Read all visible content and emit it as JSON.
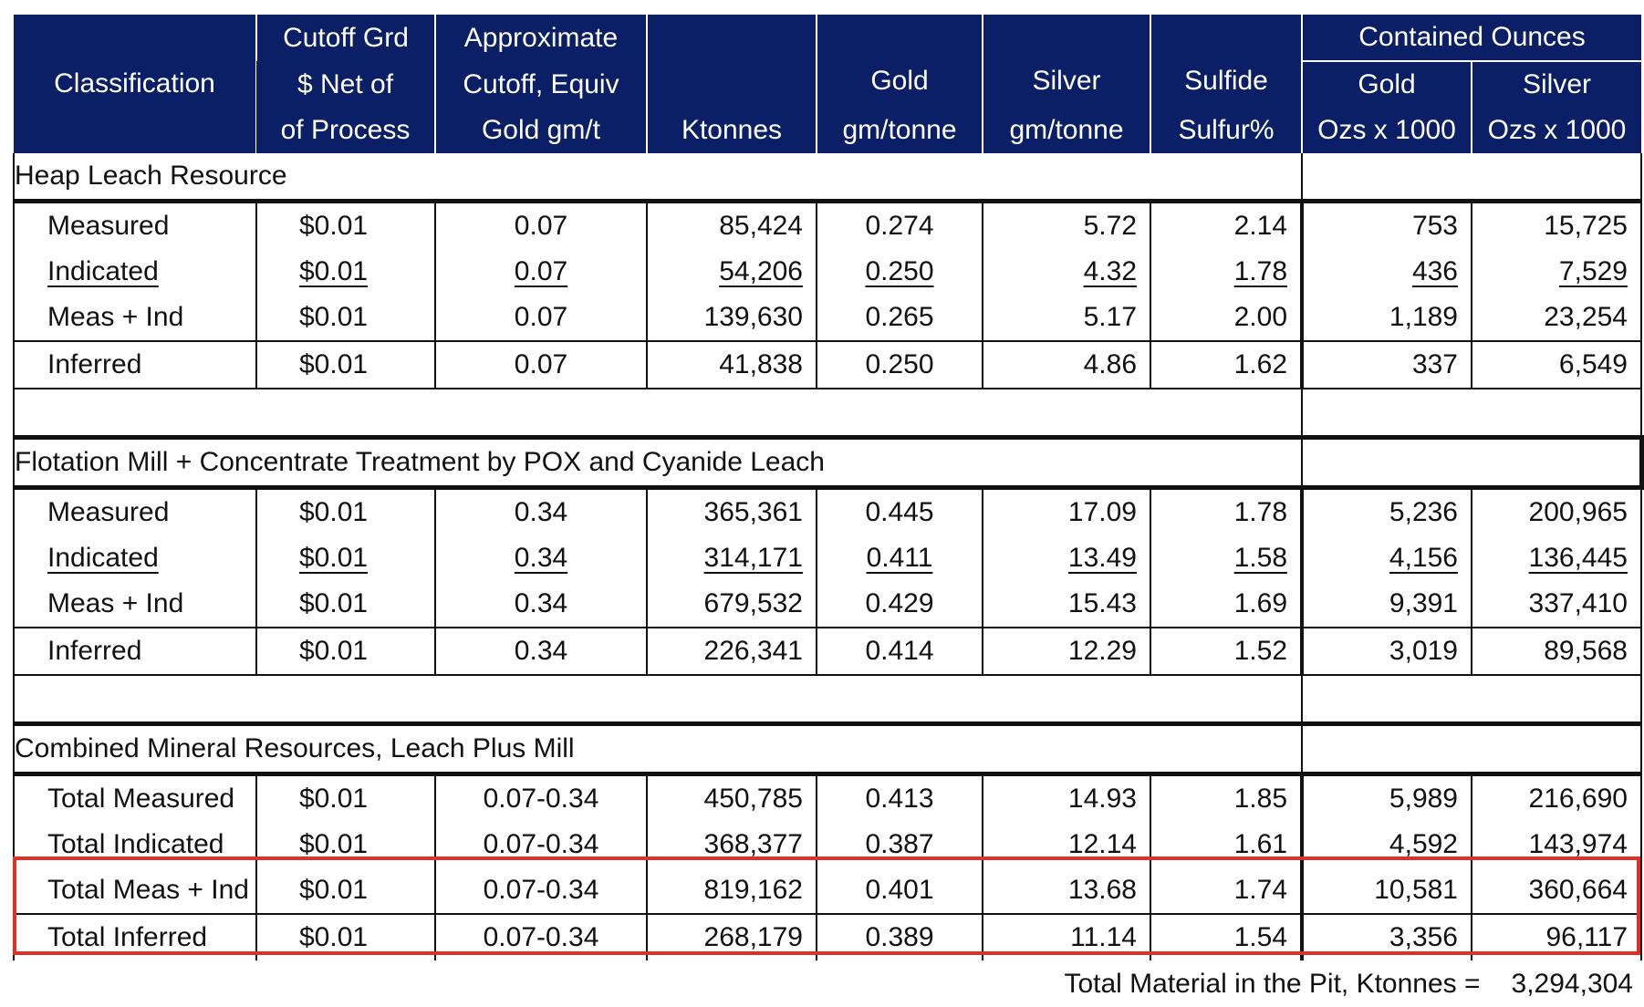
{
  "header": {
    "classification": "Classification",
    "cutoff_grd": [
      "Cutoff Grd",
      "$ Net of",
      "of Process"
    ],
    "approx_cutoff": [
      "Approximate",
      "Cutoff, Equiv",
      "Gold gm/t"
    ],
    "ktonnes": "Ktonnes",
    "gold": [
      "Gold",
      "gm/tonne"
    ],
    "silver": [
      "Silver",
      "gm/tonne"
    ],
    "sulfide": [
      "Sulfide",
      "Sulfur%"
    ],
    "contained": "Contained Ounces",
    "c_gold": [
      "Gold",
      "Ozs x 1000"
    ],
    "c_silver": [
      "Silver",
      "Ozs x 1000"
    ]
  },
  "sections": [
    {
      "title": "Heap Leach Resource",
      "rows": [
        {
          "cls": "Measured",
          "cut": "$0.01",
          "approx": "0.07",
          "kt": "85,424",
          "au": "0.274",
          "ag": "5.72",
          "s": "2.14",
          "oz_au": "753",
          "oz_ag": "15,725"
        },
        {
          "cls": "Indicated",
          "cut": "$0.01",
          "approx": "0.07",
          "kt": "54,206",
          "au": "0.250",
          "ag": "4.32",
          "s": "1.78",
          "oz_au": "436",
          "oz_ag": "7,529"
        },
        {
          "cls": "Meas + Ind",
          "cut": "$0.01",
          "approx": "0.07",
          "kt": "139,630",
          "au": "0.265",
          "ag": "5.17",
          "s": "2.00",
          "oz_au": "1,189",
          "oz_ag": "23,254"
        },
        {
          "cls": "Inferred",
          "cut": "$0.01",
          "approx": "0.07",
          "kt": "41,838",
          "au": "0.250",
          "ag": "4.86",
          "s": "1.62",
          "oz_au": "337",
          "oz_ag": "6,549"
        }
      ]
    },
    {
      "title": "Flotation Mill + Concentrate Treatment by POX and Cyanide Leach",
      "rows": [
        {
          "cls": "Measured",
          "cut": "$0.01",
          "approx": "0.34",
          "kt": "365,361",
          "au": "0.445",
          "ag": "17.09",
          "s": "1.78",
          "oz_au": "5,236",
          "oz_ag": "200,965"
        },
        {
          "cls": "Indicated",
          "cut": "$0.01",
          "approx": "0.34",
          "kt": "314,171",
          "au": "0.411",
          "ag": "13.49",
          "s": "1.58",
          "oz_au": "4,156",
          "oz_ag": "136,445"
        },
        {
          "cls": "Meas + Ind",
          "cut": "$0.01",
          "approx": "0.34",
          "kt": "679,532",
          "au": "0.429",
          "ag": "15.43",
          "s": "1.69",
          "oz_au": "9,391",
          "oz_ag": "337,410"
        },
        {
          "cls": "Inferred",
          "cut": "$0.01",
          "approx": "0.34",
          "kt": "226,341",
          "au": "0.414",
          "ag": "12.29",
          "s": "1.52",
          "oz_au": "3,019",
          "oz_ag": "89,568"
        }
      ]
    },
    {
      "title": "Combined Mineral Resources, Leach Plus Mill",
      "rows": [
        {
          "cls": "Total Measured",
          "cut": "$0.01",
          "approx": "0.07-0.34",
          "kt": "450,785",
          "au": "0.413",
          "ag": "14.93",
          "s": "1.85",
          "oz_au": "5,989",
          "oz_ag": "216,690"
        },
        {
          "cls": "Total Indicated",
          "cut": "$0.01",
          "approx": "0.07-0.34",
          "kt": "368,377",
          "au": "0.387",
          "ag": "12.14",
          "s": "1.61",
          "oz_au": "4,592",
          "oz_ag": "143,974"
        },
        {
          "cls": "Total Meas + Ind",
          "cut": "$0.01",
          "approx": "0.07-0.34",
          "kt": "819,162",
          "au": "0.401",
          "ag": "13.68",
          "s": "1.74",
          "oz_au": "10,581",
          "oz_ag": "360,664"
        },
        {
          "cls": "Total Inferred",
          "cut": "$0.01",
          "approx": "0.07-0.34",
          "kt": "268,179",
          "au": "0.389",
          "ag": "11.14",
          "s": "1.54",
          "oz_au": "3,356",
          "oz_ag": "96,117"
        }
      ]
    }
  ],
  "footer": {
    "label": "Total Material in the Pit, Ktonnes =",
    "value": "3,294,304"
  },
  "colors": {
    "header_bg": "#0b1f66",
    "highlight": "#e0302a"
  }
}
